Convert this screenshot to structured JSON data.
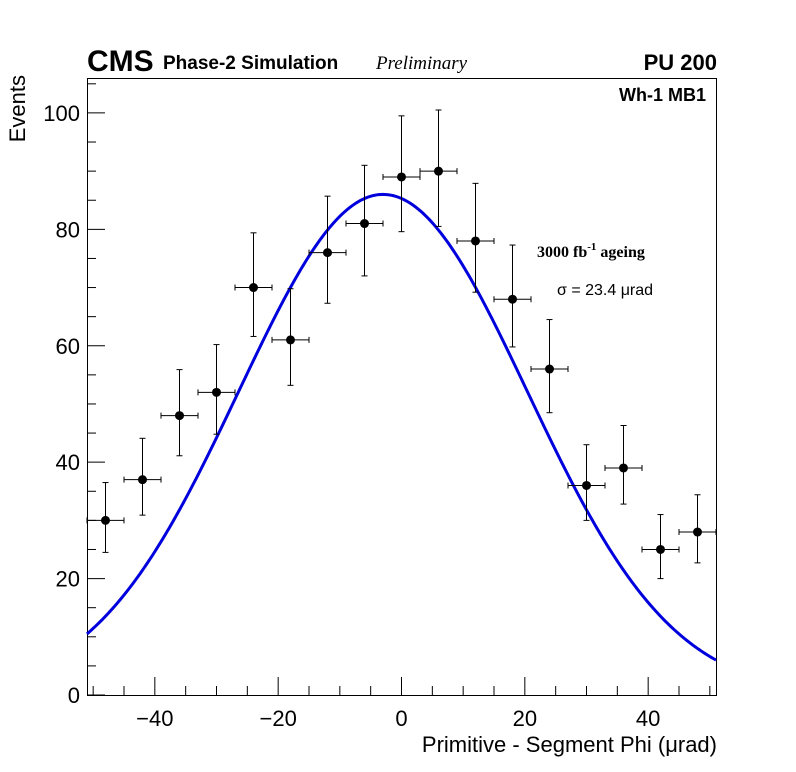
{
  "header": {
    "experiment": "CMS",
    "subtitle": "Phase-2 Simulation",
    "status": "Preliminary",
    "pileup": "PU 200"
  },
  "annotations": {
    "station": "Wh-1 MB1",
    "ageing_prefix": "3000 fb",
    "ageing_exponent": "-1",
    "ageing_suffix": " ageing",
    "sigma_label": "σ = 23.4 μrad"
  },
  "colors": {
    "fit_line": "#0000dd",
    "markers": "#000000",
    "frame": "#000000"
  },
  "chart_data": {
    "type": "scatter",
    "title": "",
    "xlabel": "Primitive - Segment Phi (μrad)",
    "ylabel": "Events",
    "xlim": [
      -51,
      51
    ],
    "ylim": [
      0,
      106
    ],
    "x_ticks": [
      -40,
      -20,
      0,
      20,
      40
    ],
    "y_ticks": [
      0,
      20,
      40,
      60,
      80,
      100
    ],
    "x_tick_labels": [
      "−40",
      "−20",
      "0",
      "20",
      "40"
    ],
    "y_tick_labels": [
      "0",
      "20",
      "40",
      "60",
      "80",
      "100"
    ],
    "bin_half_width": 3,
    "points": [
      {
        "x": -48,
        "y": 30,
        "yerr_low": 5.5,
        "yerr_high": 6.5
      },
      {
        "x": -42,
        "y": 37,
        "yerr_low": 6.1,
        "yerr_high": 7.1
      },
      {
        "x": -36,
        "y": 48,
        "yerr_low": 6.9,
        "yerr_high": 7.9
      },
      {
        "x": -30,
        "y": 52,
        "yerr_low": 7.2,
        "yerr_high": 8.2
      },
      {
        "x": -24,
        "y": 70,
        "yerr_low": 8.4,
        "yerr_high": 9.4
      },
      {
        "x": -18,
        "y": 61,
        "yerr_low": 7.8,
        "yerr_high": 8.8
      },
      {
        "x": -12,
        "y": 76,
        "yerr_low": 8.7,
        "yerr_high": 9.7
      },
      {
        "x": -6,
        "y": 81,
        "yerr_low": 9.0,
        "yerr_high": 10.0
      },
      {
        "x": 0,
        "y": 89,
        "yerr_low": 9.4,
        "yerr_high": 10.5
      },
      {
        "x": 6,
        "y": 90,
        "yerr_low": 9.5,
        "yerr_high": 10.5
      },
      {
        "x": 12,
        "y": 78,
        "yerr_low": 8.8,
        "yerr_high": 9.9
      },
      {
        "x": 18,
        "y": 68,
        "yerr_low": 8.2,
        "yerr_high": 9.3
      },
      {
        "x": 24,
        "y": 56,
        "yerr_low": 7.5,
        "yerr_high": 8.5
      },
      {
        "x": 30,
        "y": 36,
        "yerr_low": 6.0,
        "yerr_high": 7.0
      },
      {
        "x": 36,
        "y": 39,
        "yerr_low": 6.2,
        "yerr_high": 7.3
      },
      {
        "x": 42,
        "y": 25,
        "yerr_low": 5.0,
        "yerr_high": 6.0
      },
      {
        "x": 48,
        "y": 28,
        "yerr_low": 5.3,
        "yerr_high": 6.4
      }
    ],
    "fit": {
      "name": "gaussian fit",
      "function": "gaussian",
      "amplitude": 86,
      "mean": -3,
      "sigma": 23.4,
      "x_range": [
        -51,
        51
      ]
    }
  }
}
